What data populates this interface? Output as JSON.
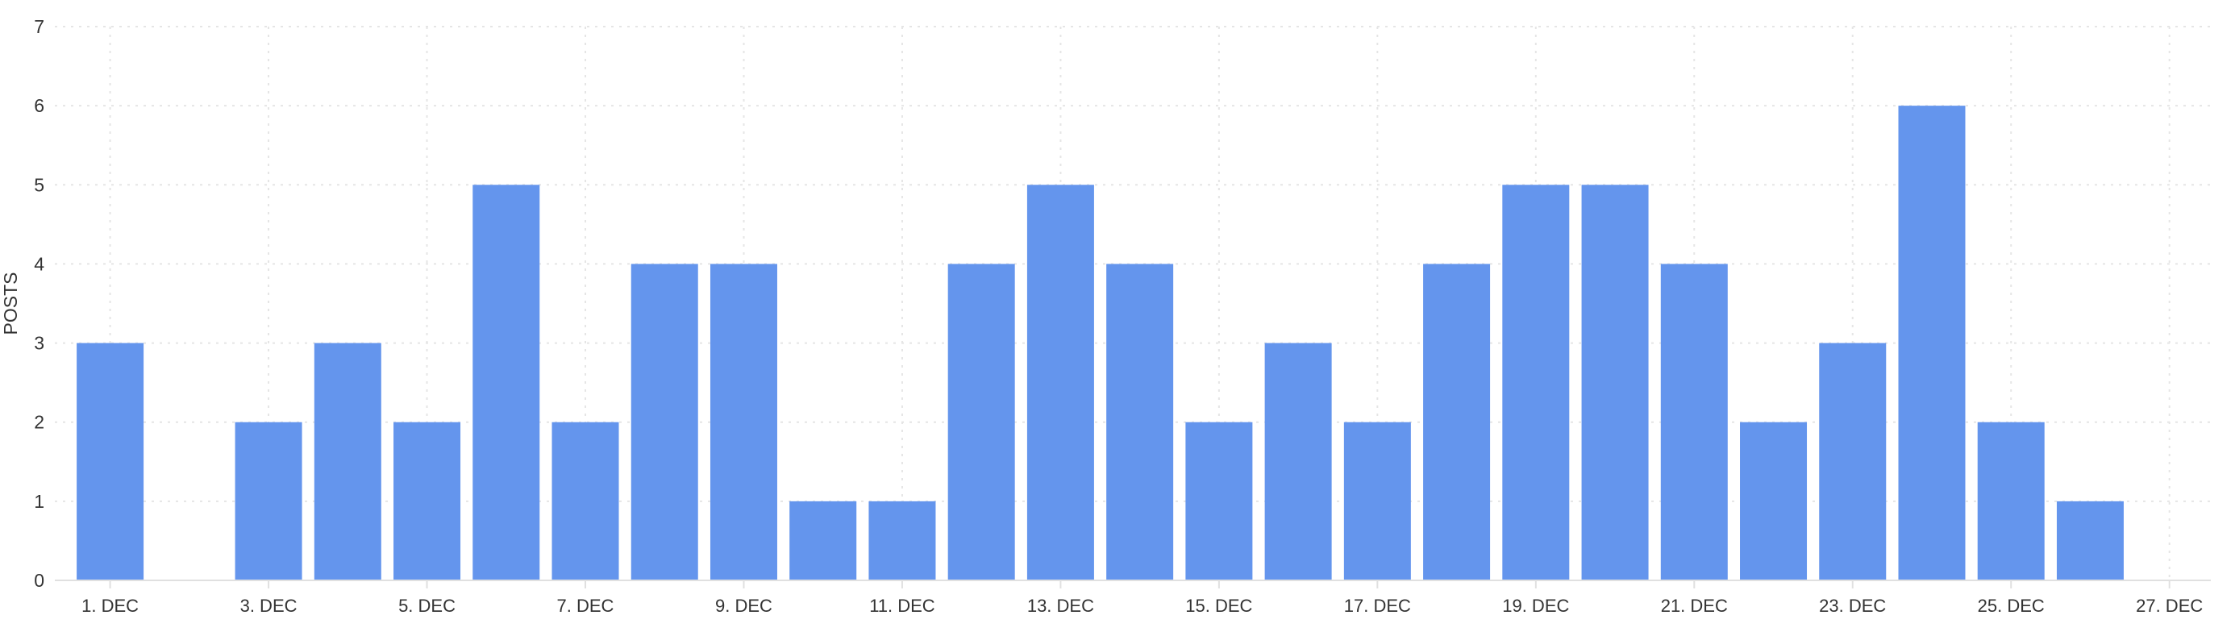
{
  "chart_data": {
    "type": "bar",
    "title": "",
    "xlabel": "",
    "ylabel": "POSTS",
    "ylim": [
      0,
      7
    ],
    "y_ticks": [
      "0",
      "1",
      "2",
      "3",
      "4",
      "5",
      "6",
      "7"
    ],
    "x_tick_labels": [
      "1. DEC",
      "3. DEC",
      "5. DEC",
      "7. DEC",
      "9. DEC",
      "11. DEC",
      "13. DEC",
      "15. DEC",
      "17. DEC",
      "19. DEC",
      "21. DEC",
      "23. DEC",
      "25. DEC",
      "27. DEC"
    ],
    "x": [
      "1. DEC",
      "2. DEC",
      "3. DEC",
      "4. DEC",
      "5. DEC",
      "6. DEC",
      "7. DEC",
      "8. DEC",
      "9. DEC",
      "10. DEC",
      "11. DEC",
      "12. DEC",
      "13. DEC",
      "14. DEC",
      "15. DEC",
      "16. DEC",
      "17. DEC",
      "18. DEC",
      "19. DEC",
      "20. DEC",
      "21. DEC",
      "22. DEC",
      "23. DEC",
      "24. DEC",
      "25. DEC",
      "26. DEC",
      "27. DEC"
    ],
    "values": [
      3,
      0,
      2,
      3,
      2,
      5,
      2,
      4,
      4,
      1,
      1,
      4,
      5,
      4,
      2,
      3,
      2,
      4,
      5,
      5,
      4,
      2,
      3,
      6,
      2,
      1,
      0
    ],
    "grid": true,
    "legend": "none",
    "colors": {
      "bar": "#6495ED",
      "grid": "#E5E5E5",
      "axis": "#E0E0E0",
      "text": "#333333"
    }
  }
}
